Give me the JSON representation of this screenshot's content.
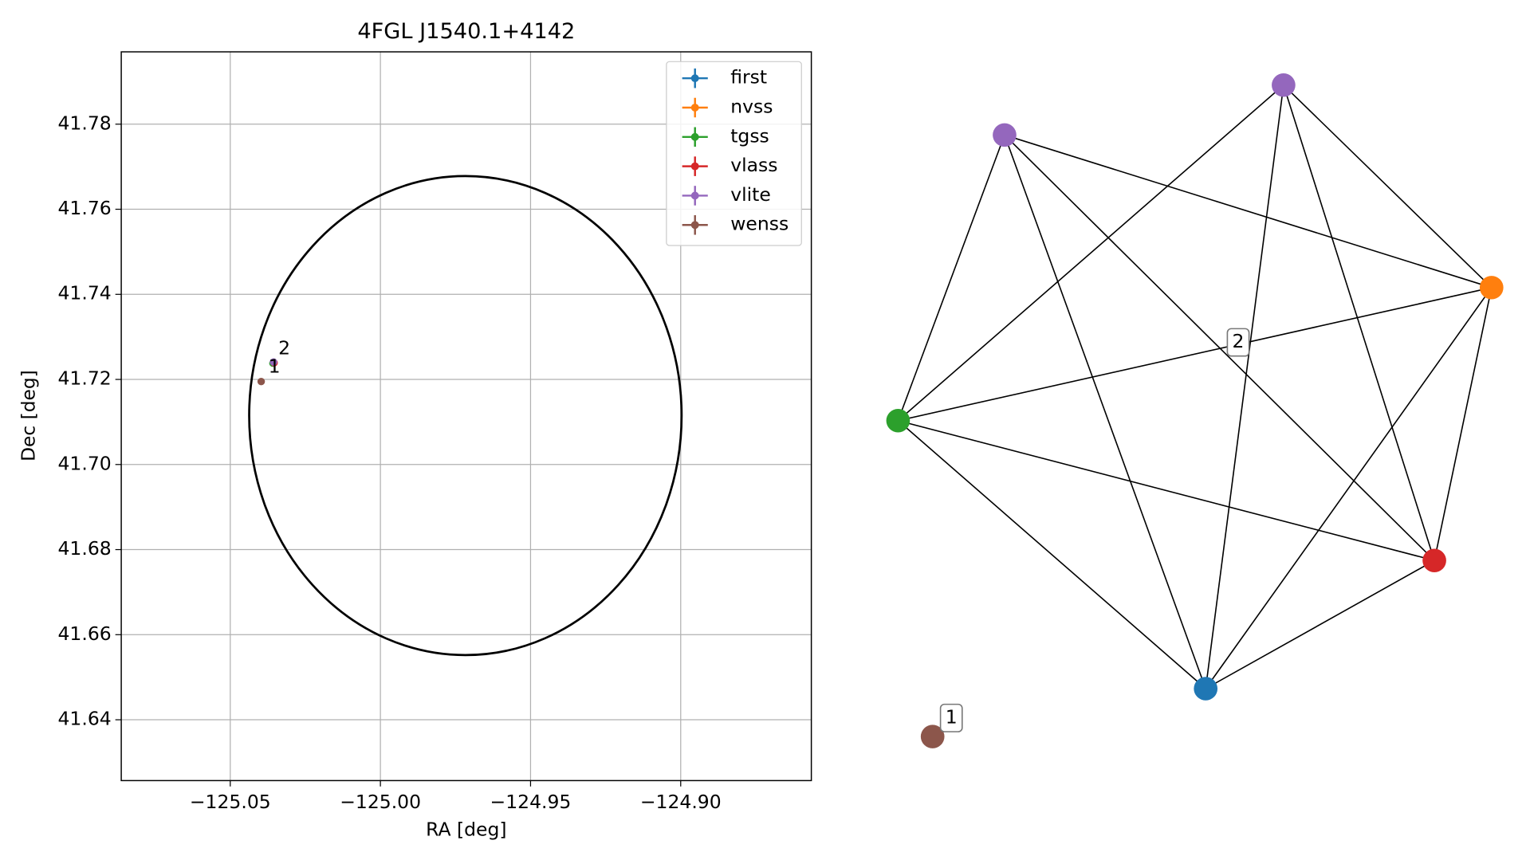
{
  "chart_data": [
    {
      "type": "scatter",
      "title": "4FGL J1540.1+4142",
      "x_label": "RA [deg]",
      "y_label": "Dec [deg]",
      "xlim": [
        -125.0863,
        -124.8565
      ],
      "ylim": [
        41.6257,
        41.797
      ],
      "xticks": [
        {
          "value": -125.05,
          "label": "−125.05"
        },
        {
          "value": -125.0,
          "label": "−125.00"
        },
        {
          "value": -124.95,
          "label": "−124.95"
        },
        {
          "value": -124.9,
          "label": "−124.90"
        }
      ],
      "yticks": [
        {
          "value": 41.64,
          "label": "41.64"
        },
        {
          "value": 41.66,
          "label": "41.66"
        },
        {
          "value": 41.68,
          "label": "41.68"
        },
        {
          "value": 41.7,
          "label": "41.70"
        },
        {
          "value": 41.72,
          "label": "41.72"
        },
        {
          "value": 41.74,
          "label": "41.74"
        },
        {
          "value": 41.76,
          "label": "41.76"
        },
        {
          "value": 41.78,
          "label": "41.78"
        }
      ],
      "grid": true,
      "legend": "upper right",
      "series": [
        {
          "name": "first",
          "color": "#1f77b4",
          "x": [
            -125.0356
          ],
          "y": [
            41.7239
          ]
        },
        {
          "name": "nvss",
          "color": "#ff7f0e",
          "x": [
            -125.0356
          ],
          "y": [
            41.7239
          ]
        },
        {
          "name": "tgss",
          "color": "#2ca02c",
          "x": [
            -125.0358
          ],
          "y": [
            41.7238
          ]
        },
        {
          "name": "vlass",
          "color": "#d62728",
          "x": [
            -125.0354
          ],
          "y": [
            41.7239
          ]
        },
        {
          "name": "vlite",
          "color": "#9467bd",
          "x": [
            -125.0356
          ],
          "y": [
            41.7241
          ]
        },
        {
          "name": "wenss",
          "color": "#8c564b",
          "x": [
            -125.0397
          ],
          "y": [
            41.7195
          ]
        }
      ],
      "ellipse": {
        "center": [
          -124.9717,
          41.7115
        ],
        "rx": 0.072,
        "ry": 0.0563,
        "color": "#000000"
      },
      "annotations": [
        {
          "text": "2",
          "x": -125.032,
          "y": 41.7271
        },
        {
          "text": "1",
          "x": -125.0353,
          "y": 41.7228
        }
      ]
    },
    {
      "type": "network",
      "nodes": [
        {
          "color": "#8c564b"
        },
        {
          "color": "#9467bd"
        },
        {
          "color": "#9467bd"
        },
        {
          "color": "#ff7f0e"
        },
        {
          "color": "#2ca02c"
        },
        {
          "color": "#d62728"
        },
        {
          "color": "#1f77b4"
        }
      ],
      "edges": [
        [
          1,
          3
        ],
        [
          1,
          5
        ],
        [
          1,
          6
        ],
        [
          1,
          4
        ],
        [
          4,
          2
        ],
        [
          4,
          3
        ],
        [
          4,
          5
        ],
        [
          4,
          6
        ],
        [
          2,
          6
        ],
        [
          2,
          5
        ],
        [
          2,
          3
        ],
        [
          3,
          5
        ],
        [
          3,
          6
        ],
        [
          5,
          6
        ]
      ],
      "group_labels": [
        {
          "text": "1"
        },
        {
          "text": "2"
        }
      ]
    }
  ]
}
